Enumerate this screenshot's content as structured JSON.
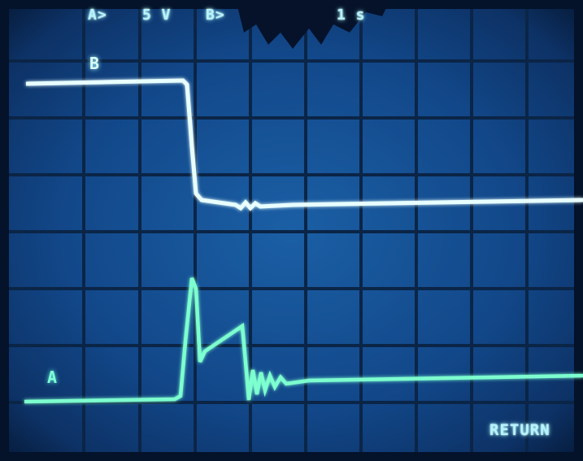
{
  "screen": {
    "readout_channel": "A>",
    "readout_volts": "5 V",
    "readout_extra": "B>",
    "readout_right": "1 s",
    "return_label": "RETURN"
  },
  "traces": {
    "b_label": "B",
    "a_label": "A"
  },
  "colors": {
    "screen_bg": "#0c2a55",
    "grid": "#0a1a33",
    "trace_b": "#e8ffff",
    "trace_a": "#7dffcf",
    "text": "#b8f2ff"
  }
}
